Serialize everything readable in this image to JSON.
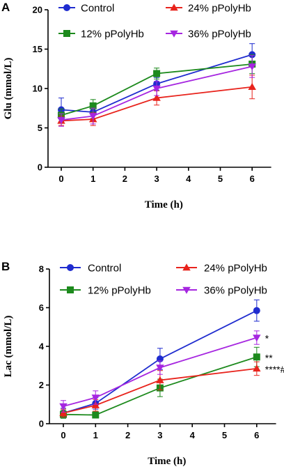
{
  "chart_data": [
    {
      "panel_label": "A",
      "type": "line",
      "xlabel": "Time (h)",
      "ylabel": "Glu (mmol/L)",
      "xlim": [
        -0.5,
        6.6
      ],
      "ylim": [
        0,
        20
      ],
      "xticks": [
        0,
        1,
        2,
        3,
        4,
        5,
        6
      ],
      "yticks": [
        0,
        5,
        10,
        15,
        20
      ],
      "x": [
        0,
        1,
        3,
        6
      ],
      "series": [
        {
          "name": "Control",
          "color": "#1f2ccf",
          "marker": "circle",
          "values": [
            7.3,
            7.0,
            10.6,
            14.3
          ],
          "errors": [
            1.5,
            0.8,
            0.8,
            1.4
          ]
        },
        {
          "name": "12% pPolyHb",
          "color": "#1d8a1d",
          "marker": "square",
          "values": [
            6.6,
            7.8,
            11.9,
            13.1
          ],
          "errors": [
            0.8,
            0.8,
            0.7,
            1.2
          ]
        },
        {
          "name": "24% pPolyHb",
          "color": "#e8231c",
          "marker": "triangle-up",
          "values": [
            5.9,
            6.1,
            8.8,
            10.2
          ],
          "errors": [
            0.6,
            0.8,
            0.9,
            1.5
          ]
        },
        {
          "name": "36% pPolyHb",
          "color": "#a626e0",
          "marker": "triangle-down",
          "values": [
            6.0,
            6.5,
            10.0,
            12.8
          ],
          "errors": [
            0.8,
            1.0,
            0.9,
            1.4
          ]
        }
      ],
      "legend": "top",
      "annotations": []
    },
    {
      "panel_label": "B",
      "type": "line",
      "xlabel": "Time (h)",
      "ylabel": "Lac (mmol/L)",
      "xlim": [
        -0.5,
        6.6
      ],
      "ylim": [
        0,
        8
      ],
      "xticks": [
        0,
        1,
        2,
        3,
        4,
        5,
        6
      ],
      "yticks": [
        0,
        2,
        4,
        6,
        8
      ],
      "x": [
        0,
        1,
        3,
        6
      ],
      "series": [
        {
          "name": "Control",
          "color": "#1f2ccf",
          "marker": "circle",
          "values": [
            0.55,
            1.05,
            3.35,
            5.85
          ],
          "errors": [
            0.25,
            0.3,
            0.55,
            0.55
          ]
        },
        {
          "name": "12% pPolyHb",
          "color": "#1d8a1d",
          "marker": "square",
          "values": [
            0.48,
            0.45,
            1.85,
            3.45
          ],
          "errors": [
            0.2,
            0.15,
            0.45,
            0.5
          ]
        },
        {
          "name": "24% pPolyHb",
          "color": "#e8231c",
          "marker": "triangle-up",
          "values": [
            0.55,
            0.95,
            2.25,
            2.85
          ],
          "errors": [
            0.2,
            0.3,
            0.5,
            0.35
          ]
        },
        {
          "name": "36% pPolyHb",
          "color": "#a626e0",
          "marker": "triangle-down",
          "values": [
            0.9,
            1.35,
            2.9,
            4.45
          ],
          "errors": [
            0.3,
            0.35,
            0.35,
            0.35
          ]
        }
      ],
      "legend": "top",
      "annotations": [
        {
          "text": "*",
          "series": "36% pPolyHb",
          "x": 6
        },
        {
          "text": "**",
          "series": "12% pPolyHb",
          "x": 6
        },
        {
          "text": "****#",
          "series": "24% pPolyHb",
          "x": 6
        }
      ]
    }
  ]
}
